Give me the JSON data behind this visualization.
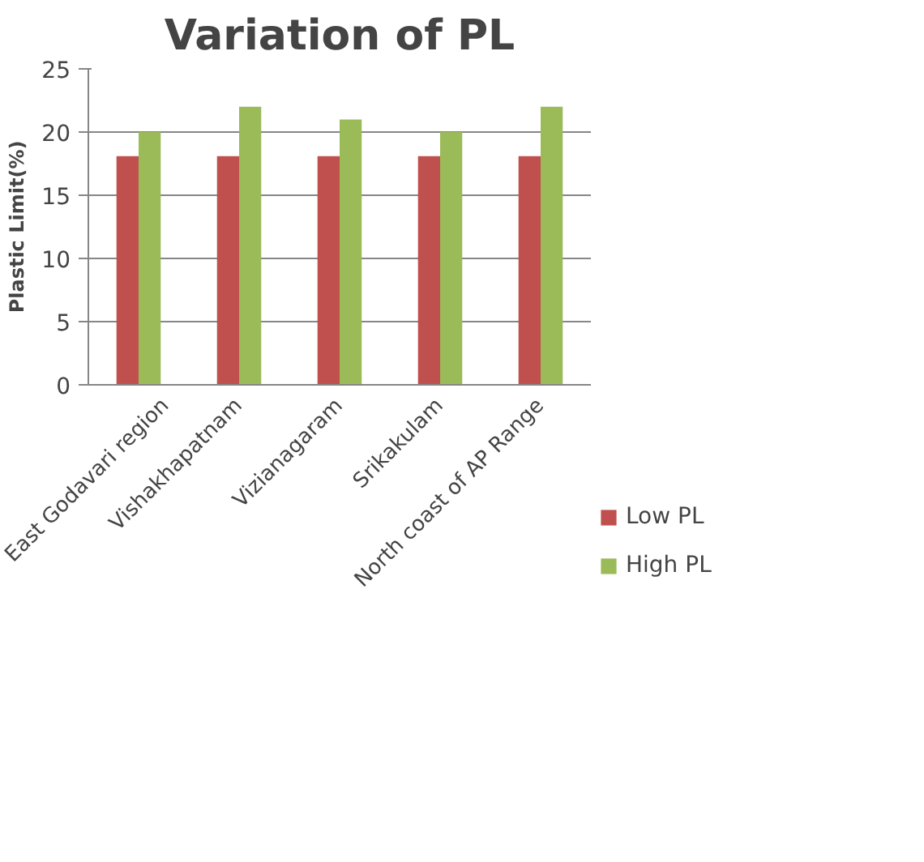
{
  "chart_data": {
    "type": "bar",
    "title": "Variation of PL",
    "ylabel": "Plastic Limit(%)",
    "categories": [
      "East Godavari region",
      "Vishakhapatnam",
      "Vizianagaram",
      "Srikakulam",
      "North coast of AP Range"
    ],
    "series": [
      {
        "name": "Low PL",
        "color": "#c0504d",
        "values": [
          18.1,
          18.1,
          18.1,
          18.1,
          18.1
        ]
      },
      {
        "name": "High PL",
        "color": "#9bbb59",
        "values": [
          20,
          22,
          21,
          20,
          22
        ]
      }
    ],
    "ylim": [
      0,
      25
    ],
    "yticks": [
      0,
      5,
      10,
      15,
      20,
      25
    ],
    "grid": "y",
    "legend": "right"
  }
}
